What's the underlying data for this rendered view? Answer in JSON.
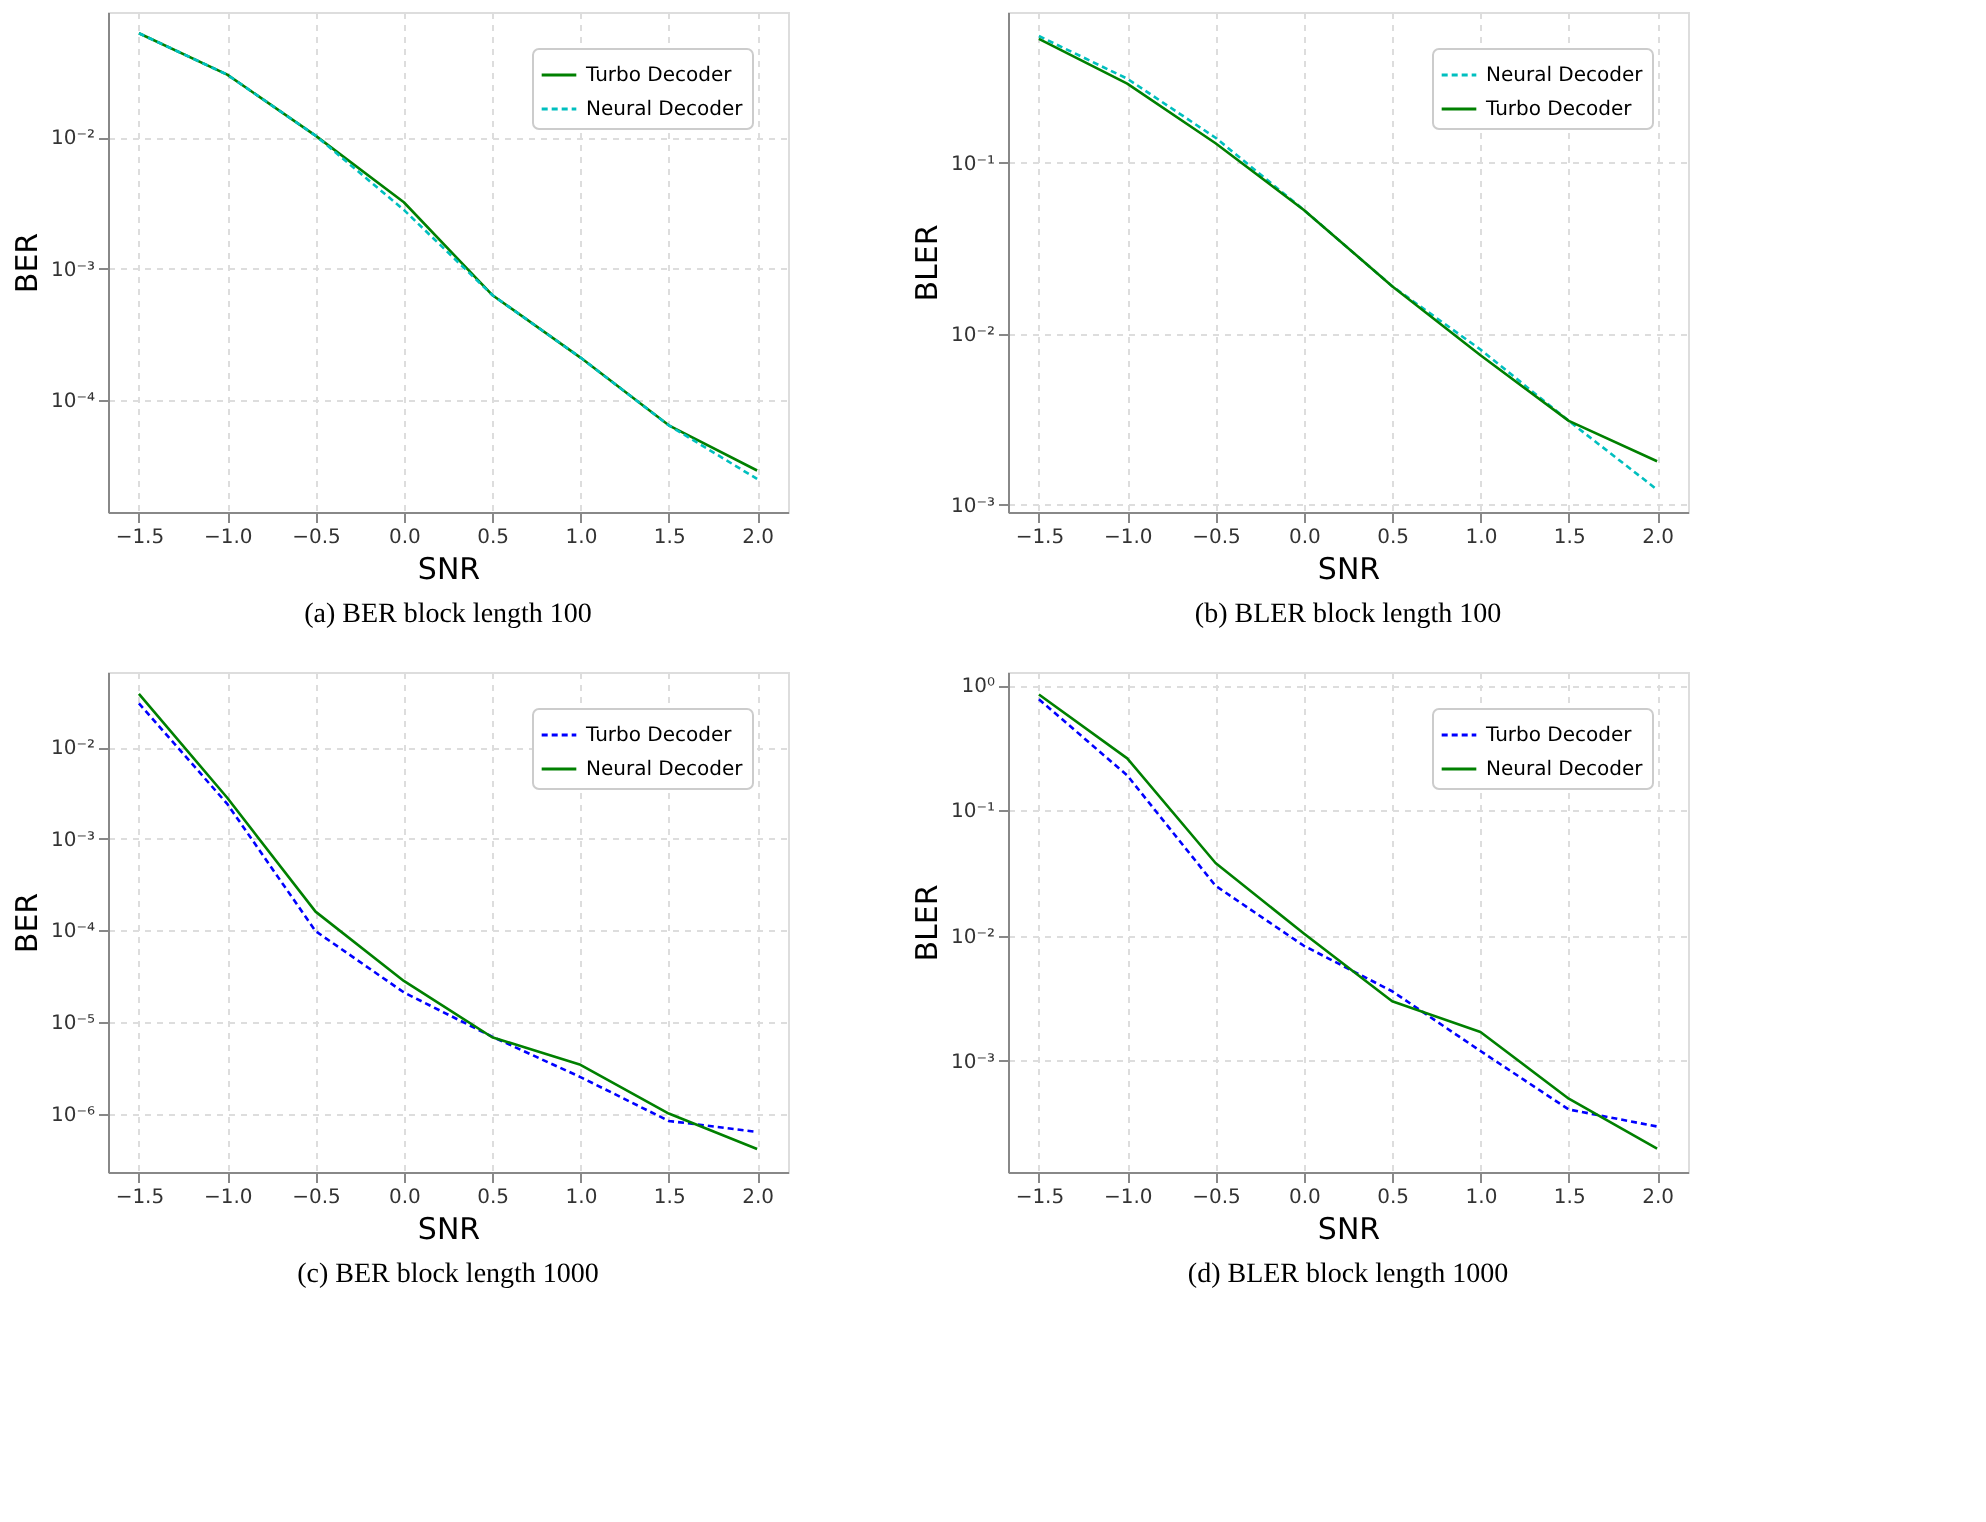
{
  "chart_data": [
    {
      "type": "line",
      "xlabel": "SNR",
      "ylabel": "BER",
      "annotations": [
        "(a) BER block length 100"
      ],
      "log": "y",
      "grid": true,
      "legend": "top right",
      "marker": "none",
      "x": [
        -1.5,
        -1.0,
        -0.5,
        0.0,
        0.5,
        1.0,
        1.5,
        2.0
      ],
      "xlim": [
        -1.675,
        2.175
      ],
      "xticks": [
        {
          "value": -1.5,
          "label": "−1.5"
        },
        {
          "value": -1.0,
          "label": "−1.0"
        },
        {
          "value": -0.5,
          "label": "−0.5"
        },
        {
          "value": 0.0,
          "label": "0.0"
        },
        {
          "value": 0.5,
          "label": "0.5"
        },
        {
          "value": 1.0,
          "label": "1.0"
        },
        {
          "value": 1.5,
          "label": "1.5"
        },
        {
          "value": 2.0,
          "label": "2.0"
        }
      ],
      "ylim": [
        1.4e-05,
        0.09
      ],
      "yticks": [
        {
          "value": 0.01,
          "label": "10⁻²"
        },
        {
          "value": 0.001,
          "label": "10⁻³"
        },
        {
          "value": 0.0001,
          "label": "10⁻⁴"
        }
      ],
      "series": [
        {
          "name": "Turbo Decoder",
          "color": "#008000",
          "line_style": "solid",
          "values": [
            0.062,
            0.03,
            0.0103,
            0.0032,
            0.00063,
            0.00021,
            6.4e-05,
            2.9e-05
          ]
        },
        {
          "name": "Neural Decoder",
          "color": "#00bfbf",
          "line_style": "dashed",
          "values": [
            0.062,
            0.03,
            0.0103,
            0.0028,
            0.00063,
            0.00021,
            6.4e-05,
            2.5e-05
          ]
        }
      ]
    },
    {
      "type": "line",
      "xlabel": "SNR",
      "ylabel": "BLER",
      "annotations": [
        "(b) BLER block length 100"
      ],
      "log": "y",
      "grid": true,
      "legend": "top right",
      "marker": "none",
      "x": [
        -1.5,
        -1.0,
        -0.5,
        0.0,
        0.5,
        1.0,
        1.5,
        2.0
      ],
      "xlim": [
        -1.675,
        2.175
      ],
      "xticks": [
        {
          "value": -1.5,
          "label": "−1.5"
        },
        {
          "value": -1.0,
          "label": "−1.0"
        },
        {
          "value": -0.5,
          "label": "−0.5"
        },
        {
          "value": 0.0,
          "label": "0.0"
        },
        {
          "value": 0.5,
          "label": "0.5"
        },
        {
          "value": 1.0,
          "label": "1.0"
        },
        {
          "value": 1.5,
          "label": "1.5"
        },
        {
          "value": 2.0,
          "label": "2.0"
        }
      ],
      "ylim": [
        0.00091,
        0.76
      ],
      "yticks": [
        {
          "value": 0.1,
          "label": "10⁻¹"
        },
        {
          "value": 0.01,
          "label": "10⁻²"
        },
        {
          "value": 0.001,
          "label": "10⁻³"
        }
      ],
      "series": [
        {
          "name": "Neural Decoder",
          "color": "#00bfbf",
          "line_style": "dashed",
          "values": [
            0.55,
            0.31,
            0.14,
            0.053,
            0.019,
            0.0081,
            0.0031,
            0.00123
          ]
        },
        {
          "name": "Turbo Decoder",
          "color": "#008000",
          "line_style": "solid",
          "values": [
            0.53,
            0.29,
            0.13,
            0.053,
            0.019,
            0.0075,
            0.0031,
            0.0018
          ]
        }
      ]
    },
    {
      "type": "line",
      "xlabel": "SNR",
      "ylabel": "BER",
      "annotations": [
        "(c) BER block length 1000"
      ],
      "log": "y",
      "grid": true,
      "legend": "top right",
      "marker": "none",
      "x": [
        -1.5,
        -1.0,
        -0.5,
        0.0,
        0.5,
        1.0,
        1.5,
        2.0
      ],
      "xlim": [
        -1.675,
        2.175
      ],
      "xticks": [
        {
          "value": -1.5,
          "label": "−1.5"
        },
        {
          "value": -1.0,
          "label": "−1.0"
        },
        {
          "value": -0.5,
          "label": "−0.5"
        },
        {
          "value": 0.0,
          "label": "0.0"
        },
        {
          "value": 0.5,
          "label": "0.5"
        },
        {
          "value": 1.0,
          "label": "1.0"
        },
        {
          "value": 1.5,
          "label": "1.5"
        },
        {
          "value": 2.0,
          "label": "2.0"
        }
      ],
      "ylim": [
        2.3e-07,
        0.066
      ],
      "yticks": [
        {
          "value": 0.01,
          "label": "10⁻²"
        },
        {
          "value": 0.001,
          "label": "10⁻³"
        },
        {
          "value": 0.0001,
          "label": "10⁻⁴"
        },
        {
          "value": 1e-05,
          "label": "10⁻⁵"
        },
        {
          "value": 1e-06,
          "label": "10⁻⁶"
        }
      ],
      "series": [
        {
          "name": "Turbo Decoder",
          "color": "#0000ff",
          "line_style": "dashed",
          "values": [
            0.03,
            0.0024,
            9.8e-05,
            2.1e-05,
            6.9e-06,
            2.5e-06,
            8.3e-07,
            6.3e-07
          ]
        },
        {
          "name": "Neural Decoder",
          "color": "#008000",
          "line_style": "solid",
          "values": [
            0.038,
            0.0028,
            0.00016,
            2.8e-05,
            6.8e-06,
            3.4e-06,
            1e-06,
            4.1e-07
          ]
        }
      ]
    },
    {
      "type": "line",
      "xlabel": "SNR",
      "ylabel": "BLER",
      "annotations": [
        "(d) BLER block length 1000"
      ],
      "log": "y",
      "grid": true,
      "legend": "top right",
      "marker": "none",
      "x": [
        -1.5,
        -1.0,
        -0.5,
        0.0,
        0.5,
        1.0,
        1.5,
        2.0
      ],
      "xlim": [
        -1.675,
        2.175
      ],
      "xticks": [
        {
          "value": -1.5,
          "label": "−1.5"
        },
        {
          "value": -1.0,
          "label": "−1.0"
        },
        {
          "value": -0.5,
          "label": "−0.5"
        },
        {
          "value": 0.0,
          "label": "0.0"
        },
        {
          "value": 0.5,
          "label": "0.5"
        },
        {
          "value": 1.0,
          "label": "1.0"
        },
        {
          "value": 1.5,
          "label": "1.5"
        },
        {
          "value": 2.0,
          "label": "2.0"
        }
      ],
      "ylim": [
        0.00013,
        1.27
      ],
      "yticks": [
        {
          "value": 1,
          "label": "10⁰"
        },
        {
          "value": 0.1,
          "label": "10⁻¹"
        },
        {
          "value": 0.01,
          "label": "10⁻²"
        },
        {
          "value": 0.001,
          "label": "10⁻³"
        }
      ],
      "series": [
        {
          "name": "Turbo Decoder",
          "color": "#0000ff",
          "line_style": "dashed",
          "values": [
            0.77,
            0.19,
            0.025,
            0.0083,
            0.0036,
            0.0012,
            0.00041,
            0.0003
          ]
        },
        {
          "name": "Neural Decoder",
          "color": "#008000",
          "line_style": "solid",
          "values": [
            0.84,
            0.26,
            0.038,
            0.0104,
            0.003,
            0.0017,
            0.0005,
            0.0002
          ]
        }
      ]
    }
  ]
}
